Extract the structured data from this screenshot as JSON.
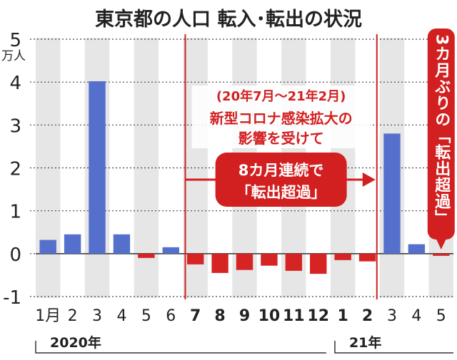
{
  "chart_data": {
    "type": "bar",
    "title": "東京都の人口 転入･転出の状況",
    "y_unit": "万人",
    "ylim": [
      -1,
      5
    ],
    "y_ticks": [
      "5",
      "4",
      "3",
      "2",
      "1",
      "0",
      "-1"
    ],
    "grid": true,
    "categories": [
      "1月",
      "2",
      "3",
      "4",
      "5",
      "6",
      "7",
      "8",
      "9",
      "10",
      "11",
      "12",
      "1",
      "2",
      "3",
      "4",
      "5"
    ],
    "values": [
      0.32,
      0.45,
      4.02,
      0.45,
      -0.1,
      0.15,
      -0.25,
      -0.45,
      -0.38,
      -0.28,
      -0.4,
      -0.47,
      -0.15,
      -0.18,
      2.8,
      0.22,
      -0.05
    ],
    "highlight_range_labels": [
      "7",
      "8",
      "9",
      "10",
      "11",
      "12",
      "1",
      "2"
    ],
    "year_labels": [
      "2020年",
      "21年"
    ],
    "annotation_period": "(20年7月～21年2月)",
    "annotation_cause": [
      "新型コロナ感染拡大の",
      "影響を受けて"
    ],
    "arrow_text": [
      "8カ月連続で",
      "「転出超過」"
    ],
    "callout_text": "3カ月ぶりの「転出超過」",
    "colors": {
      "positive_bar": "#5570cc",
      "negative_bar": "#d62424",
      "accent": "#d21f1f",
      "stripe": "#e6e6e6",
      "text": "#222222"
    }
  }
}
